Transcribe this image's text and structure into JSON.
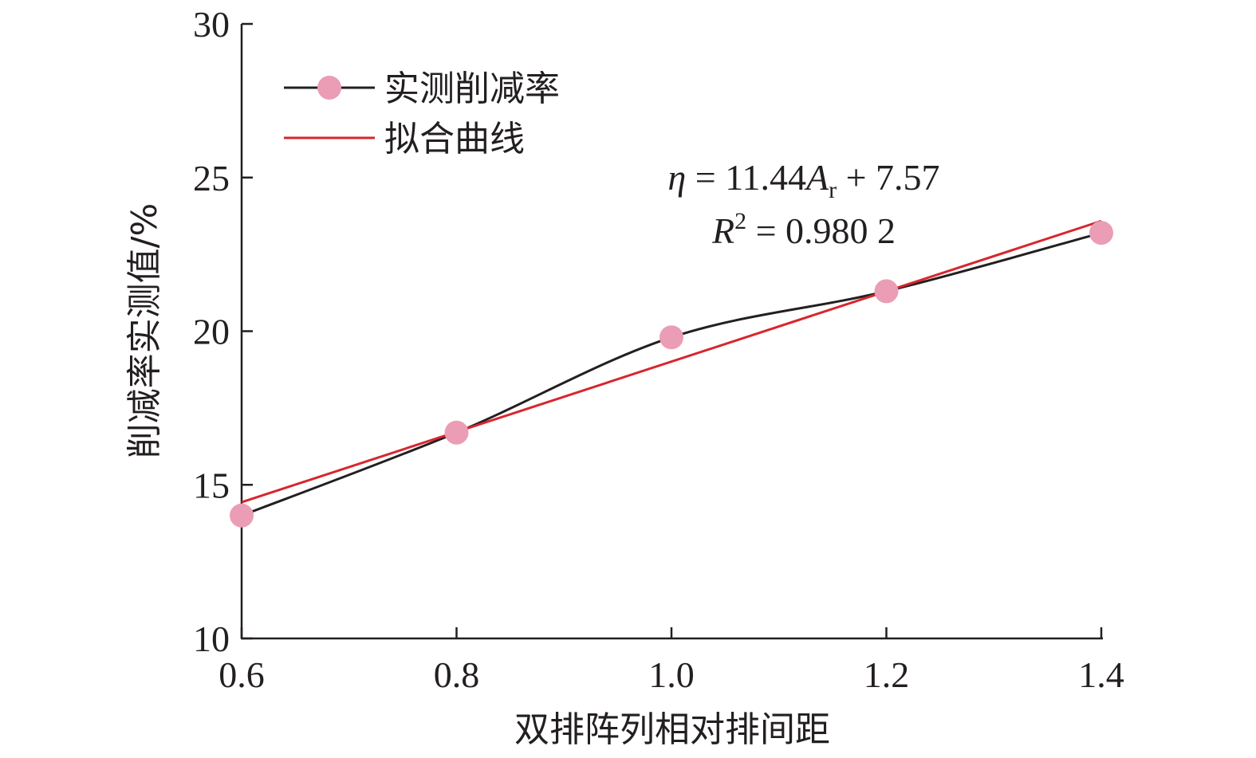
{
  "chart_data": {
    "type": "line",
    "x": [
      0.6,
      0.8,
      1.0,
      1.2,
      1.4
    ],
    "series": [
      {
        "name": "实测削减率",
        "values": [
          14.0,
          16.7,
          19.8,
          21.3,
          23.2
        ],
        "color": "#231f20",
        "marker_color": "#eb9db5"
      },
      {
        "name": "拟合曲线",
        "color": "#d7262e",
        "fit": {
          "slope": 11.44,
          "intercept": 7.57,
          "x_range": [
            0.6,
            1.4
          ]
        }
      }
    ],
    "xlabel": "双排阵列相对排间距",
    "ylabel": "削减率实测值/%",
    "xlim": [
      0.6,
      1.4
    ],
    "ylim": [
      10,
      30
    ],
    "xticks": [
      "0.6",
      "0.8",
      "1.0",
      "1.2",
      "1.4"
    ],
    "yticks": [
      "10",
      "15",
      "20",
      "25",
      "30"
    ],
    "grid": false,
    "legend_position": "top-left",
    "annotation": {
      "eq_lhs": "η",
      "eq_mid": " = 11.44",
      "eq_var": "A",
      "eq_sub": "r",
      "eq_rhs": " + 7.57",
      "r_var": "R",
      "r_sup": "2",
      "r_rhs": " = 0.980 2"
    }
  }
}
